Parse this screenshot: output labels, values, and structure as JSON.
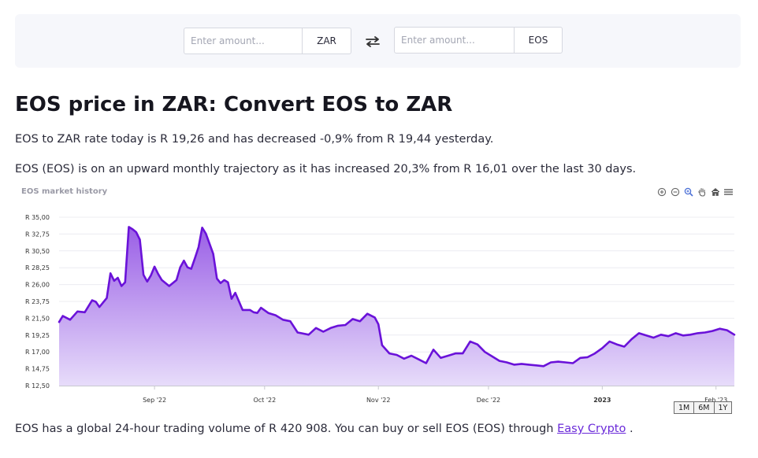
{
  "converter": {
    "from": {
      "placeholder": "Enter amount...",
      "currency": "ZAR"
    },
    "swap_icon": "swap-arrows-icon",
    "to": {
      "placeholder": "Enter amount...",
      "currency": "EOS"
    }
  },
  "heading": "EOS price in ZAR: Convert EOS to ZAR",
  "para1": "EOS to ZAR rate today is R 19,26 and has decreased -0,9% from R 19,44 yesterday.",
  "para2": "EOS (EOS) is on an upward monthly trajectory as it has increased 20,3% from R 16,01 over the last 30 days.",
  "para3": {
    "text": "EOS has a global 24-hour trading volume of R 420 908. You can buy or sell EOS (EOS) through ",
    "link": "Easy Crypto",
    "end": " ."
  },
  "toolbar": [
    "zoom-in-icon",
    "zoom-out-icon",
    "magnifier-icon",
    "pan-hand-icon",
    "home-icon",
    "menu-icon"
  ],
  "range_buttons": [
    "1M",
    "6M",
    "1Y"
  ],
  "colors": {
    "line": "#6a12d9",
    "area_top": "#9a5fe6",
    "area_bottom": "#e7dcfa",
    "grid": "#ececf1"
  },
  "chart_data": {
    "type": "area",
    "title": "EOS market history",
    "xlabel": "",
    "ylabel": "",
    "yticks": [
      "R 12,50",
      "R 14,75",
      "R 17,00",
      "R 19,25",
      "R 21,50",
      "R 23,75",
      "R 26,00",
      "R 28,25",
      "R 30,50",
      "R 32,75",
      "R 35,00"
    ],
    "ylim": [
      12.5,
      35.0
    ],
    "xlim": [
      "2022-08-06",
      "2023-02-06"
    ],
    "xticks": [
      {
        "date": "2022-09-01",
        "label": "Sep '22",
        "bold": false
      },
      {
        "date": "2022-10-01",
        "label": "Oct '22",
        "bold": false
      },
      {
        "date": "2022-11-01",
        "label": "Nov '22",
        "bold": false
      },
      {
        "date": "2022-12-01",
        "label": "Dec '22",
        "bold": false
      },
      {
        "date": "2023-01-01",
        "label": "2023",
        "bold": true
      },
      {
        "date": "2023-02-01",
        "label": "Feb '23",
        "bold": false
      }
    ],
    "grid": true,
    "legend": "none",
    "series": [
      {
        "x": [
          "2022-08-06",
          "2022-08-07",
          "2022-08-09",
          "2022-08-11",
          "2022-08-13",
          "2022-08-15",
          "2022-08-16",
          "2022-08-17",
          "2022-08-19",
          "2022-08-20",
          "2022-08-21",
          "2022-08-22",
          "2022-08-23",
          "2022-08-24",
          "2022-08-25",
          "2022-08-26",
          "2022-08-27",
          "2022-08-28",
          "2022-08-29",
          "2022-08-30",
          "2022-08-31",
          "2022-09-01",
          "2022-09-02",
          "2022-09-03",
          "2022-09-05",
          "2022-09-07",
          "2022-09-08",
          "2022-09-09",
          "2022-09-10",
          "2022-09-11",
          "2022-09-12",
          "2022-09-13",
          "2022-09-14",
          "2022-09-15",
          "2022-09-17",
          "2022-09-18",
          "2022-09-19",
          "2022-09-20",
          "2022-09-21",
          "2022-09-22",
          "2022-09-23",
          "2022-09-25",
          "2022-09-27",
          "2022-09-28",
          "2022-09-29",
          "2022-09-30",
          "2022-10-02",
          "2022-10-04",
          "2022-10-06",
          "2022-10-08",
          "2022-10-10",
          "2022-10-11",
          "2022-10-13",
          "2022-10-15",
          "2022-10-17",
          "2022-10-19",
          "2022-10-21",
          "2022-10-23",
          "2022-10-25",
          "2022-10-27",
          "2022-10-29",
          "2022-10-31",
          "2022-11-01",
          "2022-11-02",
          "2022-11-04",
          "2022-11-06",
          "2022-11-08",
          "2022-11-10",
          "2022-11-12",
          "2022-11-14",
          "2022-11-16",
          "2022-11-18",
          "2022-11-20",
          "2022-11-22",
          "2022-11-24",
          "2022-11-26",
          "2022-11-28",
          "2022-11-30",
          "2022-12-02",
          "2022-12-04",
          "2022-12-06",
          "2022-12-08",
          "2022-12-10",
          "2022-12-12",
          "2022-12-14",
          "2022-12-16",
          "2022-12-18",
          "2022-12-20",
          "2022-12-22",
          "2022-12-24",
          "2022-12-26",
          "2022-12-28",
          "2022-12-30",
          "2023-01-01",
          "2023-01-03",
          "2023-01-05",
          "2023-01-07",
          "2023-01-09",
          "2023-01-11",
          "2023-01-13",
          "2023-01-15",
          "2023-01-17",
          "2023-01-19",
          "2023-01-21",
          "2023-01-23",
          "2023-01-25",
          "2023-01-27",
          "2023-01-29",
          "2023-01-31",
          "2023-02-02",
          "2023-02-04",
          "2023-02-06"
        ],
        "y": [
          21.0,
          21.8,
          21.3,
          22.4,
          22.3,
          23.9,
          23.7,
          23.0,
          24.2,
          27.5,
          26.5,
          26.9,
          25.8,
          26.3,
          33.7,
          33.4,
          33.0,
          32.0,
          27.3,
          26.4,
          27.2,
          28.4,
          27.4,
          26.6,
          25.8,
          26.6,
          28.3,
          29.2,
          28.3,
          28.1,
          29.5,
          31.0,
          33.6,
          32.8,
          30.1,
          26.8,
          26.2,
          26.6,
          26.3,
          24.1,
          24.9,
          22.6,
          22.6,
          22.3,
          22.2,
          22.9,
          22.2,
          21.9,
          21.3,
          21.1,
          19.6,
          19.5,
          19.3,
          20.2,
          19.7,
          20.2,
          20.5,
          20.6,
          21.4,
          21.1,
          22.1,
          21.6,
          20.7,
          17.9,
          16.8,
          16.6,
          16.1,
          16.5,
          16.0,
          15.5,
          17.3,
          16.2,
          16.5,
          16.8,
          16.8,
          18.4,
          18.0,
          17.0,
          16.4,
          15.8,
          15.6,
          15.3,
          15.4,
          15.3,
          15.2,
          15.1,
          15.6,
          15.7,
          15.6,
          15.5,
          16.2,
          16.3,
          16.8,
          17.5,
          18.4,
          18.0,
          17.7,
          18.7,
          19.5,
          19.2,
          18.9,
          19.3,
          19.1,
          19.5,
          19.2,
          19.3,
          19.5,
          19.6,
          19.8,
          20.1,
          19.9,
          19.3
        ]
      }
    ]
  }
}
